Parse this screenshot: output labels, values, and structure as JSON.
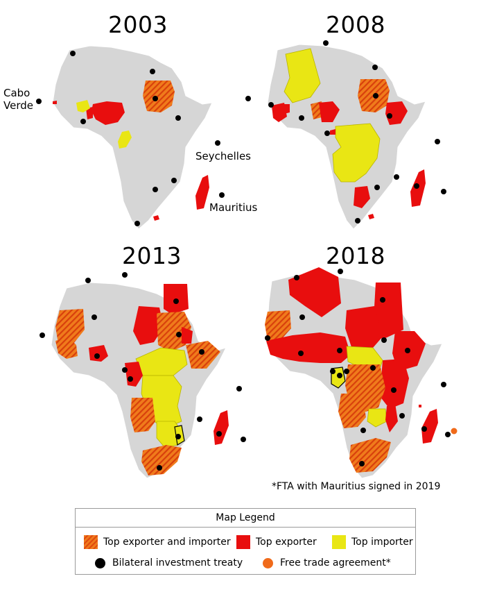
{
  "panels": [
    {
      "year": "2003",
      "labels": [
        "Cabo\nVerde",
        "Seychelles",
        "Mauritius"
      ]
    },
    {
      "year": "2008"
    },
    {
      "year": "2013"
    },
    {
      "year": "2018"
    }
  ],
  "note": "*FTA with Mauritius signed in 2019",
  "legend": {
    "title": "Map Legend",
    "exporter_importer": "Top exporter and importer",
    "exporter": "Top exporter",
    "importer": "Top importer",
    "bit": "Bilateral investment treaty",
    "fta": "Free trade agreement*"
  },
  "colors": {
    "land": "#d6d6d6",
    "exporter": "#e80e0e",
    "importer": "#e9e614",
    "hatch_a": "#f07b1c",
    "hatch_b": "#e04a10",
    "treaty": "#000000",
    "fta": "#f06a1a"
  }
}
